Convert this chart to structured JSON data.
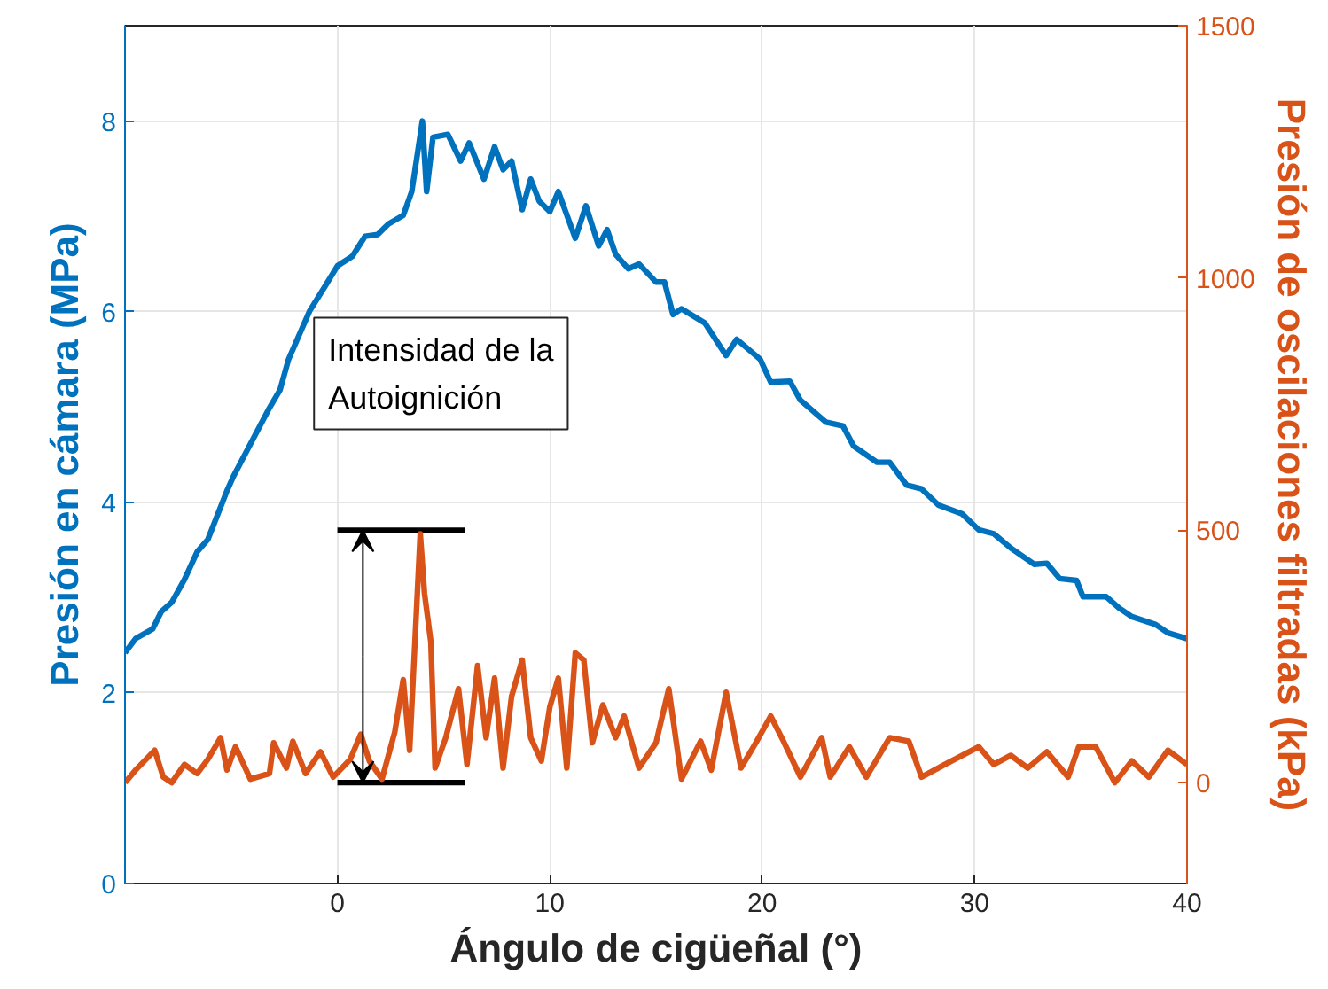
{
  "chart_data": {
    "type": "line",
    "xlabel": "Ángulo de cigüeñal (°)",
    "ylabel": "Presión en cámara (MPa)",
    "y2label": "Presión de oscilaciones filtradas (kPa)",
    "xlim": [
      -10,
      40
    ],
    "xticks": [
      0,
      10,
      20,
      30,
      40
    ],
    "ylim": [
      0,
      9
    ],
    "yticks": [
      0,
      2,
      4,
      6,
      8
    ],
    "y2lim": [
      -200,
      1500
    ],
    "y2ticks": [
      0,
      500,
      1000,
      1500
    ],
    "grid": true,
    "line_style": "solid",
    "marker": "none",
    "annotations": [
      "Intensidad de la\nAutoignición"
    ],
    "series": [
      {
        "color": "#000000",
        "axis": "y2",
        "x": [
          0,
          6
        ],
        "values": [
          500,
          500
        ]
      },
      {
        "color": "#000000",
        "axis": "y2",
        "x": [
          0,
          6
        ],
        "values": [
          0,
          0
        ]
      },
      {
        "color": "#0072bd",
        "x": [
          -10,
          -9.5,
          -8.7,
          -8.3,
          -7.8,
          -7.2,
          -6.6,
          -6.1,
          -5.2,
          -4.9,
          -4.1,
          -3.2,
          -2.7,
          -2.3,
          -1.3,
          -0.6,
          0,
          0.7,
          1.3,
          1.9,
          2.4,
          3.1,
          3.5,
          4.0,
          4.2,
          4.5,
          5.2,
          5.8,
          6.2,
          6.9,
          7.4,
          7.8,
          8.2,
          8.7,
          9.1,
          9.5,
          10,
          10.4,
          11.2,
          11.7,
          12.3,
          12.7,
          13.1,
          13.7,
          14.2,
          15,
          15.4,
          15.8,
          16.2,
          17.3,
          18.3,
          18.8,
          19.9,
          20.4,
          21.3,
          21.8,
          23,
          23.8,
          24.3,
          25.4,
          26,
          26.8,
          27.5,
          28.3,
          29.4,
          30.2,
          30.9,
          31.7,
          32.8,
          33.4,
          34,
          34.8,
          35.1,
          36.2,
          36.8,
          37.4,
          38.5,
          39.1,
          40
        ],
        "values": [
          2.42,
          2.57,
          2.67,
          2.85,
          2.95,
          3.19,
          3.48,
          3.61,
          4.12,
          4.27,
          4.61,
          4.99,
          5.18,
          5.5,
          6.01,
          6.26,
          6.48,
          6.58,
          6.79,
          6.81,
          6.92,
          7.01,
          7.26,
          8.0,
          7.26,
          7.83,
          7.86,
          7.58,
          7.77,
          7.39,
          7.73,
          7.49,
          7.58,
          7.07,
          7.39,
          7.16,
          7.05,
          7.26,
          6.77,
          7.11,
          6.69,
          6.86,
          6.6,
          6.45,
          6.5,
          6.31,
          6.31,
          5.97,
          6.03,
          5.88,
          5.54,
          5.71,
          5.5,
          5.26,
          5.27,
          5.07,
          4.84,
          4.8,
          4.59,
          4.42,
          4.42,
          4.18,
          4.14,
          3.97,
          3.88,
          3.71,
          3.67,
          3.52,
          3.35,
          3.36,
          3.2,
          3.18,
          3.01,
          3.01,
          2.89,
          2.8,
          2.72,
          2.63,
          2.57
        ]
      },
      {
        "color": "#d95319",
        "axis": "y2",
        "x": [
          -10,
          -9.5,
          -8.6,
          -8.2,
          -7.8,
          -7.2,
          -6.6,
          -6.1,
          -5.5,
          -5.2,
          -4.8,
          -4.1,
          -3.2,
          -3.0,
          -2.4,
          -2.1,
          -1.5,
          -0.8,
          -0.2,
          0.6,
          1.1,
          1.5,
          2.1,
          2.7,
          3.1,
          3.4,
          3.9,
          4.1,
          4.4,
          4.6,
          5.1,
          5.7,
          6.1,
          6.6,
          7.0,
          7.4,
          7.8,
          8.2,
          8.7,
          9.1,
          9.6,
          10.0,
          10.4,
          10.8,
          11.2,
          11.6,
          12.0,
          12.5,
          13.1,
          13.5,
          14.2,
          15.0,
          15.6,
          16.2,
          17.1,
          17.6,
          18.3,
          19.0,
          19.7,
          20.4,
          21.0,
          21.8,
          22.8,
          23.2,
          24.1,
          24.9,
          26.0,
          26.9,
          27.5,
          28.6,
          30.2,
          30.9,
          31.7,
          32.5,
          33.4,
          34.4,
          34.9,
          35.7,
          36.6,
          37.4,
          38.2,
          39.1,
          40
        ],
        "values": [
          0,
          25,
          64,
          11,
          0,
          36,
          18,
          46,
          89,
          25,
          71,
          7,
          18,
          79,
          29,
          82,
          18,
          61,
          11,
          46,
          96,
          43,
          7,
          100,
          204,
          64,
          493,
          375,
          279,
          29,
          89,
          186,
          36,
          232,
          89,
          207,
          29,
          171,
          243,
          89,
          43,
          150,
          207,
          29,
          257,
          243,
          79,
          154,
          89,
          132,
          29,
          79,
          186,
          7,
          82,
          25,
          179,
          29,
          79,
          132,
          82,
          11,
          89,
          11,
          71,
          11,
          89,
          82,
          11,
          36,
          71,
          36,
          54,
          29,
          61,
          11,
          71,
          71,
          0,
          43,
          11,
          64,
          36
        ]
      }
    ]
  }
}
